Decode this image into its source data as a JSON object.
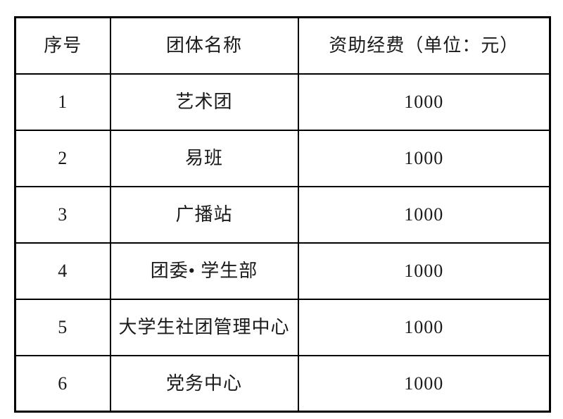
{
  "table": {
    "header": {
      "serial": "序号",
      "group_name": "团体名称",
      "funding": "资助经费（单位：元）"
    },
    "rows": [
      {
        "serial": "1",
        "group_name": "艺术团",
        "funding": "1000"
      },
      {
        "serial": "2",
        "group_name": "易班",
        "funding": "1000"
      },
      {
        "serial": "3",
        "group_name": "广播站",
        "funding": "1000"
      },
      {
        "serial": "4",
        "group_name": "团委• 学生部",
        "funding": "1000"
      },
      {
        "serial": "5",
        "group_name": "大学生社团管理中心",
        "funding": "1000"
      },
      {
        "serial": "6",
        "group_name": "党务中心",
        "funding": "1000"
      }
    ],
    "border_color": "#000000",
    "text_color": "#1a1a1a"
  }
}
